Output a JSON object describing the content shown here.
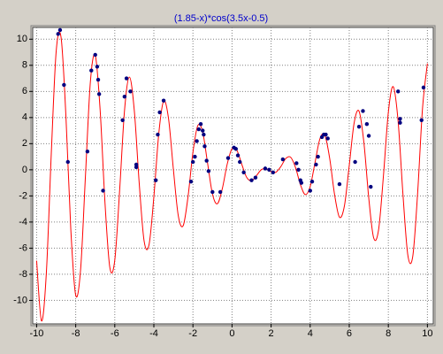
{
  "chart_data": {
    "type": "line",
    "title": "(1.85-x)*cos(3.5x-0.5)",
    "xlim": [
      -10.2,
      10.3
    ],
    "ylim": [
      -11.8,
      10.9
    ],
    "xticks": [
      -10,
      -8,
      -6,
      -4,
      -2,
      0,
      2,
      4,
      6,
      8,
      10
    ],
    "yticks": [
      -10,
      -8,
      -6,
      -4,
      -2,
      0,
      2,
      4,
      6,
      8,
      10
    ],
    "grid": true,
    "curve": {
      "color": "#ff0000",
      "x": [
        -10,
        -9.75,
        -9.5,
        -9.25,
        -9,
        -8.75,
        -8.5,
        -8.25,
        -8,
        -7.75,
        -7.5,
        -7.25,
        -7,
        -6.75,
        -6.5,
        -6.25,
        -6,
        -5.75,
        -5.5,
        -5.25,
        -5,
        -4.75,
        -4.5,
        -4.25,
        -4,
        -3.75,
        -3.5,
        -3.25,
        -3,
        -2.75,
        -2.5,
        -2.25,
        -2,
        -1.75,
        -1.5,
        -1.25,
        -1,
        -0.75,
        -0.5,
        -0.25,
        0,
        0.25,
        0.5,
        0.75,
        1,
        1.25,
        1.5,
        1.75,
        2,
        2.25,
        2.5,
        2.75,
        3,
        3.25,
        3.5,
        3.75,
        4,
        4.25,
        4.5,
        4.75,
        5,
        5.25,
        5.5,
        5.75,
        6,
        6.25,
        6.5,
        6.75,
        7,
        7.25,
        7.5,
        7.75,
        8,
        8.25,
        8.5,
        8.75,
        9,
        9.25,
        9.5,
        9.75,
        10
      ],
      "y": [
        -6.96,
        -11.57,
        -7.84,
        1.24,
        9.05,
        10.15,
        4.08,
        -4.58,
        -9.6,
        -7.65,
        -0.43,
        6.71,
        8.77,
        4.59,
        -2.56,
        -7.51,
        -6.92,
        -1.54,
        4.57,
        7.1,
        4.52,
        -1.02,
        -5.44,
        -5.76,
        -2.07,
        2.75,
        5.26,
        3.93,
        0.02,
        -3.52,
        -4.28,
        -2.04,
        1.34,
        3.39,
        2.88,
        0.5,
        -1.86,
        -2.6,
        -1.47,
        0.41,
        1.62,
        1.49,
        0.42,
        -0.58,
        -0.84,
        -0.45,
        0.01,
        0.08,
        -0.15,
        -0.18,
        0.25,
        0.86,
        0.96,
        0.17,
        -1.13,
        -1.9,
        -1.28,
        0.57,
        2.38,
        2.65,
        0.86,
        -1.91,
        -3.63,
        -2.78,
        0.34,
        3.59,
        4.49,
        2.07,
        -2.19,
        -5.22,
        -4.6,
        -0.45,
        4.4,
        6.37,
        3.72,
        -1.92,
        -6.55,
        -6.63,
        -1.77,
        4.72,
        8.14
      ]
    },
    "points": {
      "color": "#000080",
      "x": [
        -8.9,
        -8.8,
        -8.6,
        -8.4,
        -7.4,
        -7.2,
        -7.0,
        -6.9,
        -6.85,
        -6.8,
        -6.6,
        -5.6,
        -5.5,
        -5.4,
        -5.2,
        -4.9,
        -4.9,
        -3.9,
        -3.8,
        -3.7,
        -3.5,
        -2.1,
        -2.0,
        -1.9,
        -1.8,
        -1.7,
        -1.6,
        -1.5,
        -1.45,
        -1.4,
        -1.3,
        -1.2,
        -1.0,
        -0.6,
        -0.2,
        0.1,
        0.2,
        0.3,
        0.4,
        0.6,
        1.0,
        1.2,
        1.7,
        1.9,
        2.1,
        2.6,
        3.3,
        3.4,
        3.5,
        3.55,
        4.0,
        4.1,
        4.3,
        4.4,
        4.6,
        4.7,
        4.8,
        4.9,
        5.5,
        6.3,
        6.5,
        6.7,
        6.9,
        7.0,
        7.1,
        8.5,
        8.6,
        8.6,
        9.7,
        9.8
      ],
      "y": [
        10.4,
        10.7,
        6.5,
        0.6,
        1.4,
        7.6,
        8.8,
        7.9,
        6.9,
        5.8,
        -1.6,
        3.8,
        5.6,
        7.0,
        6.0,
        0.4,
        0.2,
        -0.8,
        2.7,
        4.4,
        5.3,
        -0.9,
        0.6,
        1.0,
        2.2,
        3.1,
        3.5,
        3.0,
        2.7,
        1.8,
        0.7,
        -0.1,
        -1.7,
        -1.7,
        0.9,
        1.7,
        1.6,
        1.1,
        0.6,
        -0.2,
        -0.8,
        -0.6,
        0.1,
        0.0,
        -0.2,
        0.8,
        0.5,
        0.0,
        -0.8,
        -1.0,
        -1.6,
        -0.9,
        0.4,
        1.0,
        2.5,
        2.7,
        2.7,
        2.4,
        -1.1,
        0.6,
        3.3,
        4.5,
        3.5,
        2.6,
        -1.3,
        6.0,
        3.9,
        3.6,
        3.8,
        6.3
      ]
    }
  }
}
